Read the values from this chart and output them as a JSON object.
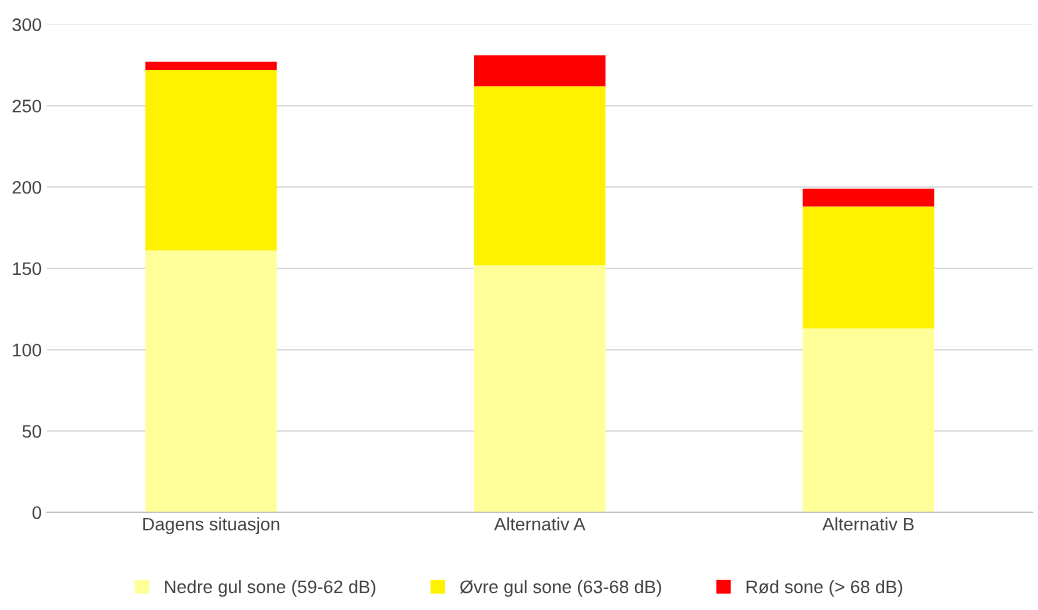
{
  "chart_data": {
    "type": "bar",
    "stacked": true,
    "categories": [
      "Dagens situasjon",
      "Alternativ A",
      "Alternativ B"
    ],
    "series": [
      {
        "name": "Nedre gul sone (59-62 dB)",
        "color": "#ffff99",
        "values": [
          161,
          152,
          113
        ]
      },
      {
        "name": "Øvre gul sone (63-68 dB)",
        "color": "#fff200",
        "values": [
          111,
          110,
          75
        ]
      },
      {
        "name": "Rød sone (> 68 dB)",
        "color": "#ff0000",
        "values": [
          5,
          19,
          11
        ]
      }
    ],
    "ylim": [
      0,
      300
    ],
    "yticks": [
      0,
      50,
      100,
      150,
      200,
      250,
      300
    ],
    "grid": "y",
    "legend": "bottom"
  }
}
